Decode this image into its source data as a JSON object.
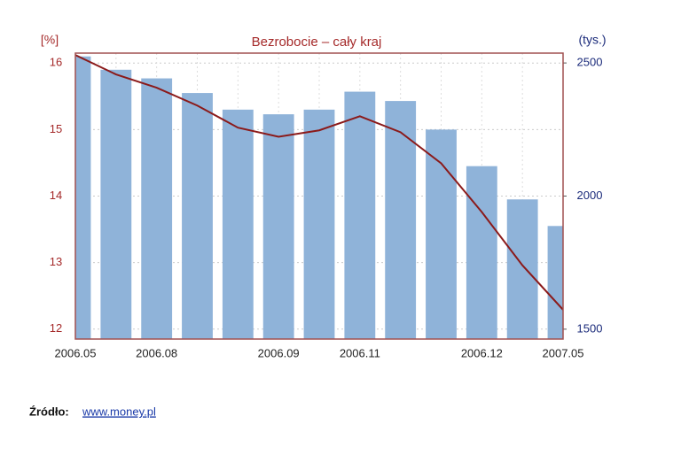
{
  "chart_data": {
    "type": "bar",
    "title": "Bezrobocie – cały kraj",
    "ylabel": "[%]",
    "y2label": "(tys.)",
    "categories": [
      "2006.05",
      null,
      "2006.08",
      null,
      null,
      "2006.09",
      null,
      "2006.11",
      null,
      null,
      "2006.12",
      null,
      "2007.05"
    ],
    "series": [
      {
        "type": "bar",
        "color": "#8fb3d9",
        "values": [
          16.1,
          15.9,
          15.77,
          15.55,
          15.3,
          15.23,
          15.3,
          15.57,
          15.43,
          15.0,
          14.45,
          13.95,
          13.55
        ]
      },
      {
        "type": "line",
        "axis": "y2",
        "color": "#8b1a1a",
        "values": [
          2530,
          2457,
          2407,
          2340,
          2257,
          2223,
          2247,
          2300,
          2240,
          2123,
          1940,
          1740,
          1573
        ]
      }
    ],
    "ylim": [
      11.85,
      16.15
    ],
    "yticks": [
      12,
      13,
      14,
      15,
      16
    ],
    "y2lim": [
      1463,
      2537
    ],
    "y2ticks": [
      1500,
      2000,
      2500
    ],
    "grid": true,
    "source_label": "Źródło:",
    "source_link": "www.money.pl"
  }
}
